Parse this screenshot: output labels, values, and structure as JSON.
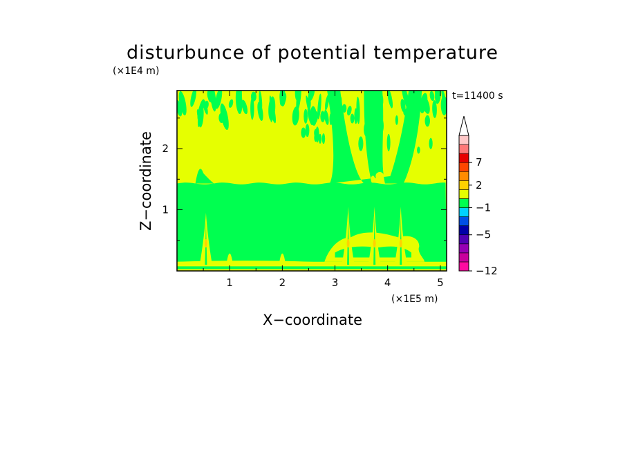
{
  "chart_data": {
    "type": "heatmap",
    "title": "disturbunce of potential temperature",
    "xlabel": "X−coordinate",
    "ylabel": "Z−coordinate",
    "x_unit": "(×1E5 m)",
    "y_unit": "(×1E4 m)",
    "time_label": "t=11400 s",
    "xlim": [
      0,
      5.12
    ],
    "ylim": [
      0,
      2.95
    ],
    "x_ticks": [
      {
        "value": 1,
        "label": "1"
      },
      {
        "value": 2,
        "label": "2"
      },
      {
        "value": 3,
        "label": "3"
      },
      {
        "value": 4,
        "label": "4"
      },
      {
        "value": 5,
        "label": "5"
      }
    ],
    "y_ticks": [
      {
        "value": 1,
        "label": "1"
      },
      {
        "value": 2,
        "label": "2"
      }
    ],
    "colorbar": {
      "colors": [
        "#ff0aa0",
        "#c8009c",
        "#9600b4",
        "#5000b4",
        "#0000a8",
        "#0050e6",
        "#00d2ff",
        "#00ff50",
        "#e6ff00",
        "#ffd200",
        "#ff8c00",
        "#ff4600",
        "#e60000",
        "#ff7878",
        "#ffc8c8"
      ],
      "extend_top_color": "#ffffff",
      "tick_labels": [
        {
          "label": "−12",
          "band": 0
        },
        {
          "label": "−5",
          "band": 4
        },
        {
          "label": "−1",
          "band": 7
        },
        {
          "label": "2",
          "band": 9.5
        },
        {
          "label": "7",
          "band": 12
        }
      ]
    },
    "field_colors": {
      "background": "#e6ff00",
      "green": "#00ff50",
      "yellow": "#e6ff00",
      "orange": "#ffd200"
    },
    "regions": {
      "lower_green_band": {
        "z": [
          0.15,
          1.43
        ]
      },
      "upper_yellow_band": {
        "z": [
          1.43,
          2.95
        ]
      },
      "bottom_yellow_layer": {
        "z": [
          0.03,
          0.15
        ]
      },
      "plumes_x": [
        0.55,
        3.25,
        3.75,
        4.25
      ]
    }
  }
}
